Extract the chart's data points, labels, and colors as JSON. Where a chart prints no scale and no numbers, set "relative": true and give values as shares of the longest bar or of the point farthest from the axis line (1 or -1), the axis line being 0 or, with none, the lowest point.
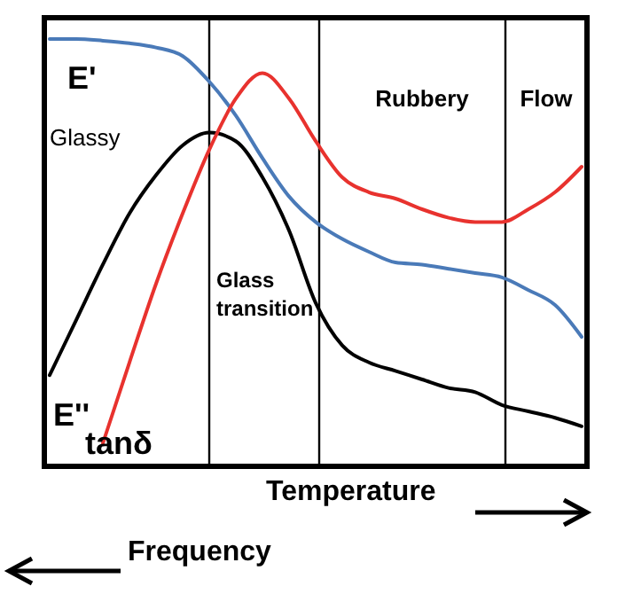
{
  "chart_data": {
    "type": "line",
    "relative": true,
    "xlabel": "Temperature",
    "marker": "none",
    "line_style": "solid",
    "categories": [
      null,
      null,
      null,
      null,
      null,
      null,
      null,
      null,
      null,
      null,
      null,
      null,
      null,
      null,
      null,
      null,
      null,
      null,
      null,
      null,
      null
    ],
    "series": [
      {
        "name": "E'",
        "color": "#4a7ab8",
        "values": [
          1.0,
          1.0,
          0.996,
          0.99,
          0.98,
          0.96,
          0.9,
          0.82,
          0.72,
          0.63,
          0.57,
          0.53,
          0.5,
          0.475,
          0.47,
          0.46,
          0.45,
          0.44,
          0.41,
          0.375,
          0.3
        ]
      },
      {
        "name": "E''",
        "color": "#000000",
        "values": [
          0.21,
          0.34,
          0.47,
          0.59,
          0.68,
          0.75,
          0.78,
          0.76,
          0.675,
          0.55,
          0.38,
          0.28,
          0.24,
          0.22,
          0.2,
          0.18,
          0.17,
          0.14,
          0.125,
          0.11,
          0.09
        ]
      },
      {
        "name": "tanδ",
        "color": "#e8322e",
        "values": [
          null,
          null,
          0.05,
          0.24,
          0.425,
          0.59,
          0.74,
          0.86,
          0.92,
          0.86,
          0.76,
          0.675,
          0.64,
          0.625,
          0.6,
          0.58,
          0.57,
          0.57,
          0.6,
          0.64,
          0.7
        ]
      }
    ],
    "annotations": [
      "Glassy",
      "Glass transition",
      "Rubbery",
      "Flow",
      "Frequency"
    ]
  }
}
